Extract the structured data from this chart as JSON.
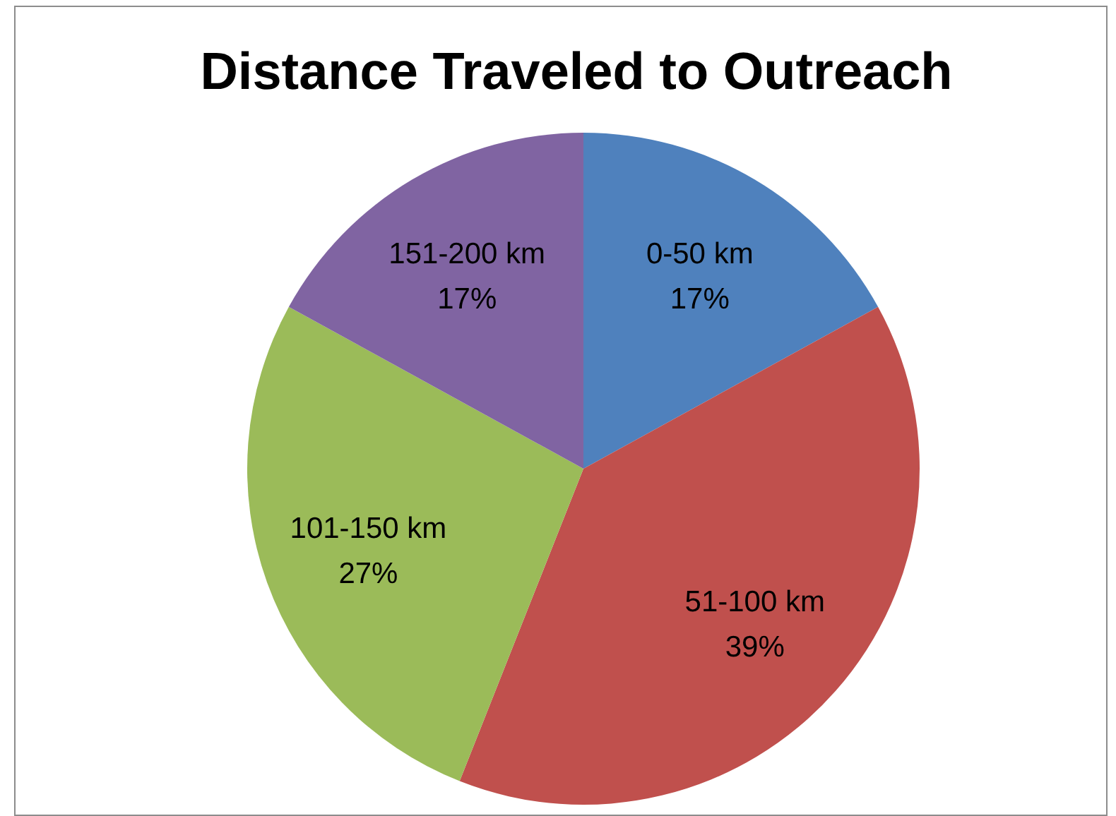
{
  "chart_data": {
    "type": "pie",
    "title": "Distance Traveled to Outreach",
    "categories": [
      "0-50 km",
      "51-100 km",
      "101-150 km",
      "151-200 km"
    ],
    "values": [
      17,
      39,
      27,
      17
    ],
    "colors": [
      "#4f81bd",
      "#c0504d",
      "#9bbb59",
      "#8064a2"
    ],
    "value_labels": [
      "17%",
      "39%",
      "27%",
      "17%"
    ]
  }
}
